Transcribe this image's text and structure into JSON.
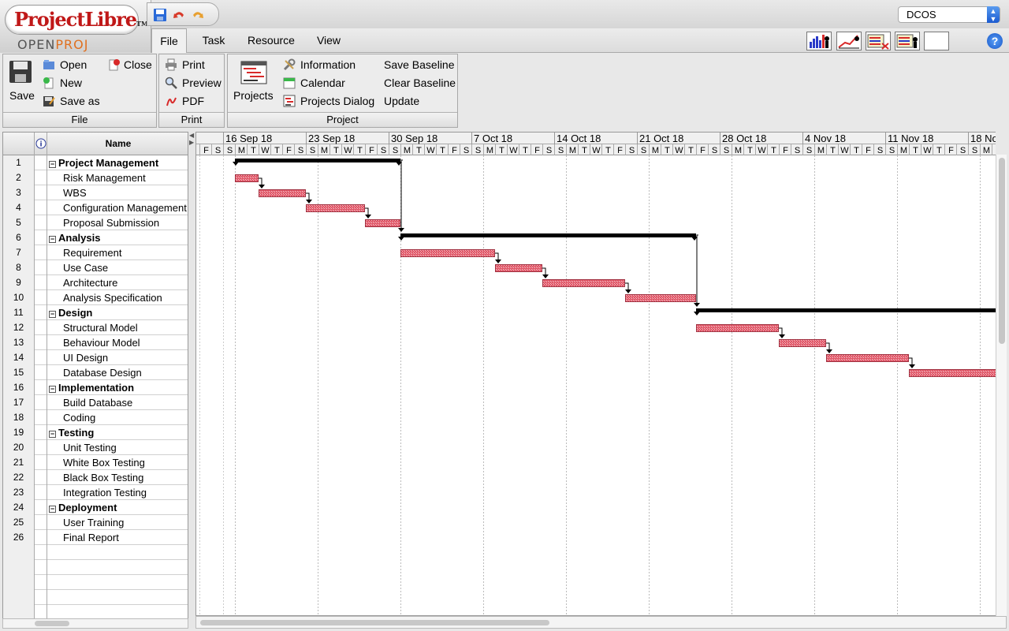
{
  "app": {
    "logo_text": "ProjectLibre",
    "logo_tm": "TM",
    "logo_sub_a": "OPEN",
    "logo_sub_b": "PROJ",
    "project_selector": "DCOS"
  },
  "tabs": [
    {
      "label": "File",
      "active": true
    },
    {
      "label": "Task",
      "active": false
    },
    {
      "label": "Resource",
      "active": false
    },
    {
      "label": "View",
      "active": false
    }
  ],
  "view_buttons": [
    "histogram-view-icon",
    "chart-view-icon",
    "task-usage-icon",
    "resource-usage-icon",
    "blank-view"
  ],
  "ribbon": {
    "file": {
      "title": "File",
      "save": "Save",
      "open": "Open",
      "close": "Close",
      "new": "New",
      "save_as": "Save as"
    },
    "print": {
      "title": "Print",
      "print": "Print",
      "preview": "Preview",
      "pdf": "PDF"
    },
    "project": {
      "title": "Project",
      "projects": "Projects",
      "information": "Information",
      "calendar": "Calendar",
      "projects_dialog": "Projects Dialog",
      "save_baseline": "Save Baseline",
      "clear_baseline": "Clear Baseline",
      "update": "Update"
    }
  },
  "table": {
    "col_name": "Name",
    "rows": [
      {
        "id": "1",
        "name": "Project Management",
        "summary": true
      },
      {
        "id": "2",
        "name": "Risk Management",
        "summary": false
      },
      {
        "id": "3",
        "name": "WBS",
        "summary": false
      },
      {
        "id": "4",
        "name": "Configuration Management",
        "summary": false
      },
      {
        "id": "5",
        "name": "Proposal Submission",
        "summary": false
      },
      {
        "id": "6",
        "name": "Analysis",
        "summary": true
      },
      {
        "id": "7",
        "name": "Requirement",
        "summary": false
      },
      {
        "id": "8",
        "name": "Use Case",
        "summary": false
      },
      {
        "id": "9",
        "name": "Architecture",
        "summary": false
      },
      {
        "id": "10",
        "name": "Analysis Specification",
        "summary": false
      },
      {
        "id": "11",
        "name": "Design",
        "summary": true
      },
      {
        "id": "12",
        "name": "Structural Model",
        "summary": false
      },
      {
        "id": "13",
        "name": "Behaviour Model",
        "summary": false
      },
      {
        "id": "14",
        "name": "UI Design",
        "summary": false
      },
      {
        "id": "15",
        "name": "Database Design",
        "summary": false
      },
      {
        "id": "16",
        "name": "Implementation",
        "summary": true
      },
      {
        "id": "17",
        "name": "Build Database",
        "summary": false
      },
      {
        "id": "18",
        "name": "Coding",
        "summary": false
      },
      {
        "id": "19",
        "name": "Testing",
        "summary": true
      },
      {
        "id": "20",
        "name": "Unit Testing",
        "summary": false
      },
      {
        "id": "21",
        "name": "White Box Testing",
        "summary": false
      },
      {
        "id": "22",
        "name": "Black Box Testing",
        "summary": false
      },
      {
        "id": "23",
        "name": "Integration Testing",
        "summary": false
      },
      {
        "id": "24",
        "name": "Deployment",
        "summary": true
      },
      {
        "id": "25",
        "name": "User Training",
        "summary": false
      },
      {
        "id": "26",
        "name": "Final Report",
        "summary": false
      }
    ]
  },
  "gantt": {
    "weeks": [
      "16 Sep 18",
      "23 Sep 18",
      "30 Sep 18",
      "7 Oct 18",
      "14 Oct 18",
      "21 Oct 18",
      "28 Oct 18",
      "4 Nov 18",
      "11 Nov 18",
      "18 No"
    ],
    "day_letters": [
      "S",
      "M",
      "T",
      "W",
      "T",
      "F",
      "S"
    ],
    "lead_days": [
      "F",
      "S"
    ],
    "bars": [
      {
        "row": 1,
        "type": "summary",
        "start": "2018-09-17",
        "end": "2018-09-30"
      },
      {
        "row": 2,
        "type": "task",
        "start": "2018-09-17",
        "end": "2018-09-18"
      },
      {
        "row": 3,
        "type": "task",
        "start": "2018-09-19",
        "end": "2018-09-22"
      },
      {
        "row": 4,
        "type": "task",
        "start": "2018-09-23",
        "end": "2018-09-27"
      },
      {
        "row": 5,
        "type": "task",
        "start": "2018-09-28",
        "end": "2018-09-30"
      },
      {
        "row": 6,
        "type": "summary",
        "start": "2018-10-01",
        "end": "2018-10-25"
      },
      {
        "row": 7,
        "type": "task",
        "start": "2018-10-01",
        "end": "2018-10-08"
      },
      {
        "row": 8,
        "type": "task",
        "start": "2018-10-09",
        "end": "2018-10-12"
      },
      {
        "row": 9,
        "type": "task",
        "start": "2018-10-13",
        "end": "2018-10-19"
      },
      {
        "row": 10,
        "type": "task",
        "start": "2018-10-20",
        "end": "2018-10-25"
      },
      {
        "row": 11,
        "type": "summary",
        "start": "2018-10-26",
        "end": "2018-11-24"
      },
      {
        "row": 12,
        "type": "task",
        "start": "2018-10-26",
        "end": "2018-11-01"
      },
      {
        "row": 13,
        "type": "task",
        "start": "2018-11-02",
        "end": "2018-11-05"
      },
      {
        "row": 14,
        "type": "task",
        "start": "2018-11-06",
        "end": "2018-11-12"
      },
      {
        "row": 15,
        "type": "task",
        "start": "2018-11-13",
        "end": "2018-11-24"
      }
    ],
    "links": [
      [
        2,
        3
      ],
      [
        3,
        4
      ],
      [
        4,
        5
      ],
      [
        1,
        6
      ],
      [
        7,
        8
      ],
      [
        8,
        9
      ],
      [
        9,
        10
      ],
      [
        6,
        11
      ],
      [
        12,
        13
      ],
      [
        13,
        14
      ],
      [
        14,
        15
      ]
    ]
  }
}
